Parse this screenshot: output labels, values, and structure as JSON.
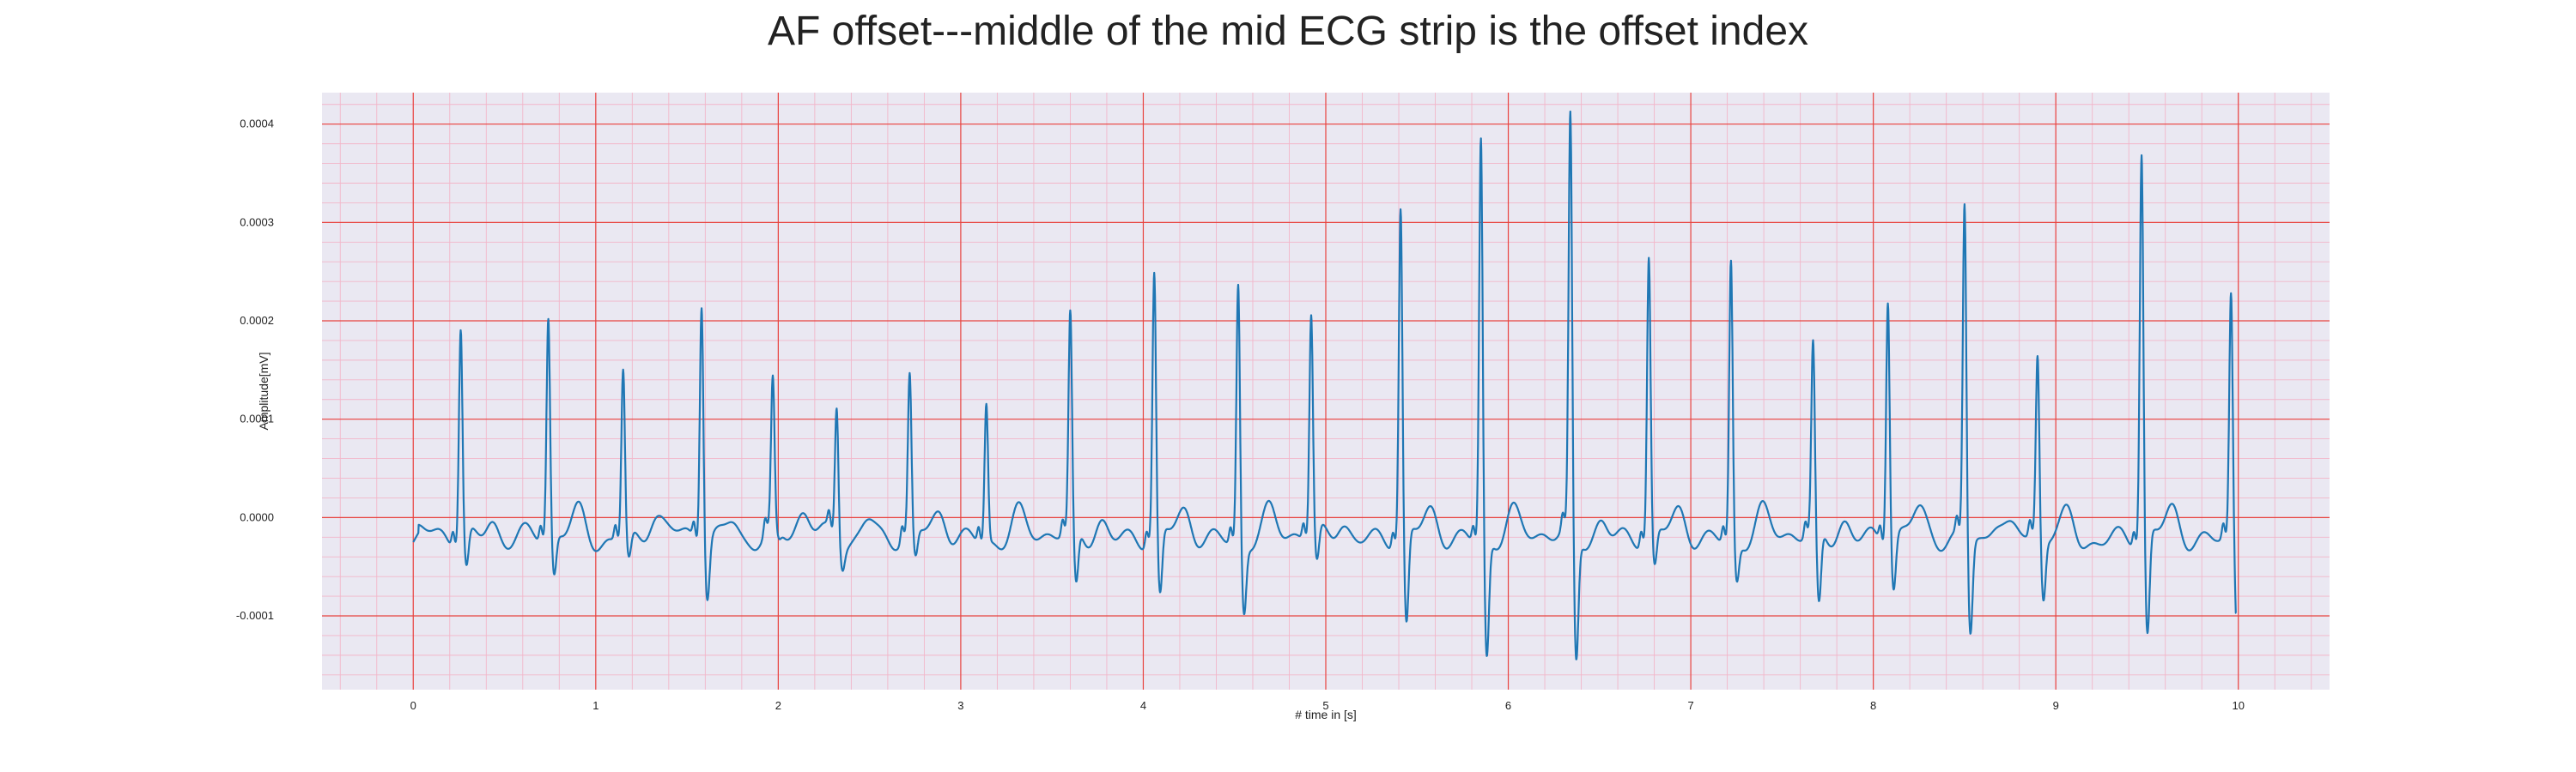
{
  "chart_data": {
    "type": "line",
    "title": "AF offset---middle of the mid ECG strip is the offset index",
    "xlabel": "# time in [s]",
    "ylabel": "Amplitude[mV]",
    "xlim": [
      -0.5,
      10.5
    ],
    "ylim": [
      -0.000175,
      0.000432
    ],
    "x_ticks": [
      0,
      1,
      2,
      3,
      4,
      5,
      6,
      7,
      8,
      9,
      10
    ],
    "x_tick_labels": [
      "0",
      "1",
      "2",
      "3",
      "4",
      "5",
      "6",
      "7",
      "8",
      "9",
      "10"
    ],
    "y_ticks": [
      -0.0001,
      0.0,
      0.0001,
      0.0002,
      0.0003,
      0.0004
    ],
    "y_tick_labels": [
      "-0.0001",
      "0.0000",
      "0.0001",
      "0.0002",
      "0.0003",
      "0.0004"
    ],
    "grid": true,
    "minor_grid": true,
    "series": [
      {
        "color": "#1f77b4",
        "baseline": 1e-05,
        "beats": [
          {
            "t": 0.26,
            "r": 0.000196,
            "s": -5.6e-05
          },
          {
            "t": 0.74,
            "r": 0.000202,
            "s": -6.2e-05
          },
          {
            "t": 1.15,
            "r": 0.000153,
            "s": -4.5e-05
          },
          {
            "t": 1.58,
            "r": 0.000226,
            "s": -7.8e-05
          },
          {
            "t": 1.97,
            "r": 0.00013,
            "s": -3e-05
          },
          {
            "t": 2.32,
            "r": 0.000118,
            "s": -4e-05
          },
          {
            "t": 2.72,
            "r": 0.000138,
            "s": -5e-05
          },
          {
            "t": 3.14,
            "r": 0.000121,
            "s": -2e-05
          },
          {
            "t": 3.6,
            "r": 0.000199,
            "s": -7.8e-05
          },
          {
            "t": 4.06,
            "r": 0.000246,
            "s": -8.8e-05
          },
          {
            "t": 4.52,
            "r": 0.000243,
            "s": -9e-05
          },
          {
            "t": 4.92,
            "r": 0.000204,
            "s": -5.5e-05
          },
          {
            "t": 5.41,
            "r": 0.000314,
            "s": -0.000117
          },
          {
            "t": 5.85,
            "r": 0.000393,
            "s": -0.000138
          },
          {
            "t": 6.34,
            "r": 0.000403,
            "s": -0.000148
          },
          {
            "t": 6.77,
            "r": 0.000262,
            "s": -5.8e-05
          },
          {
            "t": 7.22,
            "r": 0.000265,
            "s": -6e-05
          },
          {
            "t": 7.67,
            "r": 0.00017,
            "s": -9.8e-05
          },
          {
            "t": 8.08,
            "r": 0.00023,
            "s": -7.2e-05
          },
          {
            "t": 8.5,
            "r": 0.000322,
            "s": -0.000115
          },
          {
            "t": 8.9,
            "r": 0.000163,
            "s": -8.3e-05
          },
          {
            "t": 9.47,
            "r": 0.000373,
            "s": -0.000126
          },
          {
            "t": 9.96,
            "r": 0.000234,
            "s": -9.7e-05
          }
        ],
        "end_value": -9.7e-05
      }
    ]
  },
  "colors": {
    "plot_background": "#eae8f2",
    "major_grid": "#e8433f",
    "minor_grid": "#f2b6c9",
    "line": "#1f77b4"
  }
}
